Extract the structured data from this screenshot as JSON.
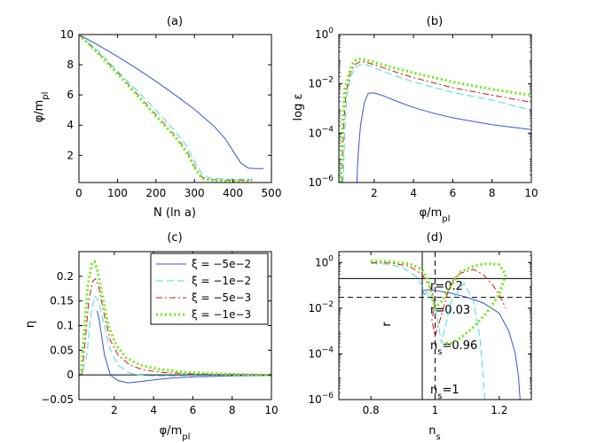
{
  "chart_data": [
    {
      "id": "a",
      "type": "line",
      "title": "(a)",
      "xlabel": "N (ln a)",
      "ylabel": "φ/m_pl",
      "xlim": [
        0,
        500
      ],
      "ylim": [
        0.2,
        10
      ],
      "yscale": "linear",
      "xticks": [
        0,
        100,
        200,
        300,
        400,
        500
      ],
      "xticklabels": [
        "0",
        "100",
        "200",
        "300",
        "400",
        "500"
      ],
      "yticks": [
        2,
        4,
        6,
        8,
        10
      ],
      "yticklabels": [
        "2",
        "4",
        "6",
        "8",
        "10"
      ],
      "series": [
        {
          "name": "ξ = −5e−2",
          "x": [
            0,
            50,
            100,
            150,
            200,
            250,
            300,
            350,
            380,
            400,
            420,
            440,
            460,
            480
          ],
          "y": [
            10,
            9.3,
            8.55,
            7.75,
            6.9,
            6.0,
            5.05,
            3.95,
            3.1,
            2.3,
            1.5,
            1.15,
            1.12,
            1.12
          ]
        },
        {
          "name": "ξ = −1e−2",
          "x": [
            0,
            50,
            100,
            150,
            200,
            250,
            280,
            300,
            320,
            340,
            380,
            420,
            450
          ],
          "y": [
            10,
            8.9,
            7.6,
            6.3,
            5.0,
            3.6,
            2.6,
            1.6,
            0.75,
            0.5,
            0.42,
            0.42,
            0.42
          ]
        },
        {
          "name": "ξ = −5e−3",
          "x": [
            0,
            50,
            100,
            150,
            200,
            250,
            280,
            300,
            320,
            340,
            380,
            420,
            450
          ],
          "y": [
            10,
            8.8,
            7.5,
            6.1,
            4.7,
            3.3,
            2.3,
            1.3,
            0.55,
            0.4,
            0.35,
            0.35,
            0.35
          ]
        },
        {
          "name": "ξ = −1e−3",
          "x": [
            0,
            50,
            100,
            150,
            200,
            250,
            280,
            300,
            320,
            340,
            380,
            420,
            450
          ],
          "y": [
            10,
            8.75,
            7.4,
            6.0,
            4.6,
            3.2,
            2.2,
            1.2,
            0.45,
            0.35,
            0.3,
            0.3,
            0.3
          ]
        }
      ]
    },
    {
      "id": "b",
      "type": "line",
      "title": "(b)",
      "xlabel": "φ/m_pl",
      "ylabel": "log ε",
      "xlim": [
        0.2,
        10
      ],
      "ylim": [
        1e-06,
        1
      ],
      "yscale": "log",
      "xticks": [
        2,
        4,
        6,
        8,
        10
      ],
      "xticklabels": [
        "2",
        "4",
        "6",
        "8",
        "10"
      ],
      "yticks": [
        1e-06,
        0.0001,
        0.01,
        1
      ],
      "yticklabels": [
        [
          "10",
          "−6"
        ],
        [
          "10",
          "−4"
        ],
        [
          "10",
          "−2"
        ],
        [
          "10",
          "0"
        ]
      ],
      "series": [
        {
          "name": "ξ = −5e−2",
          "x": [
            1.12,
            1.14,
            1.2,
            1.3,
            1.5,
            1.7,
            2.0,
            2.5,
            3,
            4,
            5,
            6,
            8,
            10
          ],
          "y": [
            1e-06,
            3e-06,
            2e-05,
            0.0002,
            0.0018,
            0.0042,
            0.0043,
            0.0032,
            0.0022,
            0.0011,
            0.00065,
            0.00042,
            0.00022,
            0.00014
          ]
        },
        {
          "name": "ξ = −1e−2",
          "x": [
            0.42,
            0.5,
            0.6,
            0.8,
            1.0,
            1.3,
            1.6,
            2,
            3,
            4,
            6,
            8,
            10
          ],
          "y": [
            1e-06,
            0.0001,
            0.003,
            0.018,
            0.045,
            0.062,
            0.06,
            0.045,
            0.022,
            0.012,
            0.0045,
            0.0022,
            0.00085
          ]
        },
        {
          "name": "ξ = −5e−3",
          "x": [
            0.35,
            0.45,
            0.55,
            0.8,
            1.0,
            1.3,
            1.6,
            2,
            3,
            4,
            6,
            8,
            10
          ],
          "y": [
            1e-06,
            0.0002,
            0.004,
            0.03,
            0.06,
            0.08,
            0.075,
            0.06,
            0.032,
            0.018,
            0.007,
            0.0035,
            0.0018
          ]
        },
        {
          "name": "ξ = −1e−3",
          "x": [
            0.3,
            0.4,
            0.5,
            0.8,
            1.0,
            1.3,
            1.6,
            2,
            3,
            4,
            6,
            8,
            10
          ],
          "y": [
            1e-06,
            0.0003,
            0.006,
            0.045,
            0.09,
            0.1,
            0.092,
            0.075,
            0.045,
            0.028,
            0.012,
            0.006,
            0.0035
          ]
        }
      ]
    },
    {
      "id": "c",
      "type": "line",
      "title": "(c)",
      "xlabel": "φ/m_pl",
      "ylabel": "η",
      "xlim": [
        0.2,
        10
      ],
      "ylim": [
        -0.05,
        0.25
      ],
      "yscale": "linear",
      "xticks": [
        2,
        4,
        6,
        8,
        10
      ],
      "xticklabels": [
        "2",
        "4",
        "6",
        "8",
        "10"
      ],
      "yticks": [
        -0.05,
        0,
        0.05,
        0.1,
        0.15,
        0.2
      ],
      "yticklabels": [
        "−0.05",
        "0",
        "0.05",
        "0.1",
        "0.15",
        "0.2"
      ],
      "hline": 0,
      "legend": "top-right",
      "series": [
        {
          "name": "ξ = −5e−2",
          "x": [
            1.12,
            1.2,
            1.35,
            1.5,
            1.8,
            2.2,
            2.7,
            3.2,
            4,
            5,
            6,
            8,
            10
          ],
          "y": [
            0.13,
            0.12,
            0.08,
            0.04,
            0.0,
            -0.012,
            -0.016,
            -0.014,
            -0.01,
            -0.006,
            -0.004,
            -0.002,
            -0.001
          ]
        },
        {
          "name": "ξ = −1e−2",
          "x": [
            0.42,
            0.6,
            0.8,
            1.0,
            1.2,
            1.5,
            1.8,
            2.2,
            2.7,
            3.2,
            4,
            5,
            6,
            8,
            10
          ],
          "y": [
            0.01,
            0.04,
            0.12,
            0.16,
            0.15,
            0.1,
            0.05,
            0.02,
            0.005,
            0.0,
            -0.002,
            -0.002,
            -0.001,
            -0.001,
            0.0
          ]
        },
        {
          "name": "ξ = −5e−3",
          "x": [
            0.35,
            0.5,
            0.7,
            0.9,
            1.05,
            1.2,
            1.5,
            1.8,
            2.2,
            2.8,
            3.5,
            4.5,
            6,
            8,
            10
          ],
          "y": [
            0.0,
            0.06,
            0.15,
            0.19,
            0.195,
            0.18,
            0.12,
            0.07,
            0.04,
            0.02,
            0.01,
            0.005,
            0.002,
            0.001,
            0.0
          ]
        },
        {
          "name": "ξ = −1e−3",
          "x": [
            0.3,
            0.45,
            0.65,
            0.85,
            1.0,
            1.15,
            1.4,
            1.7,
            2.1,
            2.6,
            3.3,
            4.2,
            5.5,
            7,
            8.5,
            10
          ],
          "y": [
            0.0,
            0.08,
            0.18,
            0.225,
            0.23,
            0.21,
            0.16,
            0.1,
            0.06,
            0.035,
            0.02,
            0.012,
            0.006,
            0.003,
            0.001,
            0.0
          ]
        }
      ]
    },
    {
      "id": "d",
      "type": "line",
      "title": "(d)",
      "xlabel": "n_s",
      "ylabel": "r",
      "xlim": [
        0.7,
        1.3
      ],
      "ylim": [
        1e-06,
        3
      ],
      "yscale": "log",
      "xticks": [
        0.8,
        1,
        1.2
      ],
      "xticklabels": [
        "0.8",
        "1",
        "1.2"
      ],
      "yticks": [
        1e-06,
        0.0001,
        0.01,
        1
      ],
      "yticklabels": [
        [
          "10",
          "−6"
        ],
        [
          "10",
          "−4"
        ],
        [
          "10",
          "−2"
        ],
        [
          "10",
          "0"
        ]
      ],
      "vlines": [
        {
          "x": 0.96,
          "style": "solid"
        },
        {
          "x": 1.0,
          "style": "dashed"
        }
      ],
      "hlines": [
        {
          "y": 0.2,
          "style": "solid"
        },
        {
          "y": 0.03,
          "style": "dashed"
        }
      ],
      "annotations": [
        "r=0.2",
        "r=0.03",
        "n_s=0.96",
        "n_s=1"
      ],
      "series": [
        {
          "name": "ξ = −5e−2",
          "x": [
            0.97,
            0.96,
            0.965,
            0.98,
            1.0,
            1.05,
            1.1,
            1.15,
            1.2,
            1.23,
            1.25,
            1.26,
            1.265
          ],
          "y": [
            0.04,
            0.05,
            0.06,
            0.065,
            0.06,
            0.045,
            0.03,
            0.017,
            0.006,
            0.001,
            0.0001,
            1e-05,
            1e-06
          ]
        },
        {
          "name": "ξ = −1e−2",
          "x": [
            0.8,
            0.85,
            0.9,
            0.94,
            0.97,
            1.0,
            1.01,
            1.02,
            1.05,
            1.09,
            1.12,
            1.14,
            1.15,
            1.155
          ],
          "y": [
            0.9,
            0.85,
            0.6,
            0.25,
            0.06,
            0.015,
            0.002,
            0.0003,
            0.02,
            0.12,
            0.02,
            0.0005,
            1e-05,
            1e-06
          ]
        },
        {
          "name": "ξ = −5e−3",
          "x": [
            0.8,
            0.86,
            0.92,
            0.96,
            0.99,
            1.0,
            0.99,
            1.0,
            1.02,
            1.04,
            1.06,
            1.08,
            1.12,
            1.15,
            1.18,
            1.2,
            1.22
          ],
          "y": [
            1.0,
            0.95,
            0.7,
            0.3,
            0.06,
            0.015,
            0.003,
            0.0006,
            0.005,
            0.05,
            0.2,
            0.35,
            0.5,
            0.3,
            0.1,
            0.04,
            0.01
          ]
        },
        {
          "name": "ξ = −1e−3",
          "x": [
            0.8,
            0.86,
            0.92,
            0.96,
            0.98,
            0.99,
            1.0,
            1.02,
            1.05,
            1.08,
            1.12,
            1.16,
            1.2,
            1.22,
            1.2,
            1.16,
            1.12,
            1.08,
            1.05,
            1.03
          ],
          "y": [
            1.2,
            1.1,
            0.9,
            0.5,
            0.15,
            0.04,
            0.01,
            0.02,
            0.1,
            0.4,
            0.7,
            0.9,
            0.8,
            0.3,
            0.04,
            0.006,
            0.0015,
            0.0005,
            0.0003,
            0.0003
          ]
        }
      ]
    }
  ],
  "styles": {
    "series_colors": [
      "#3355dd",
      "#44dddd",
      "#dd1111",
      "#66ee11"
    ],
    "series_dashes": [
      "",
      "8,4",
      "7,3,2,3",
      "2,3"
    ],
    "series_widths": [
      1,
      1,
      1,
      3
    ],
    "axis_color": "#000000"
  }
}
